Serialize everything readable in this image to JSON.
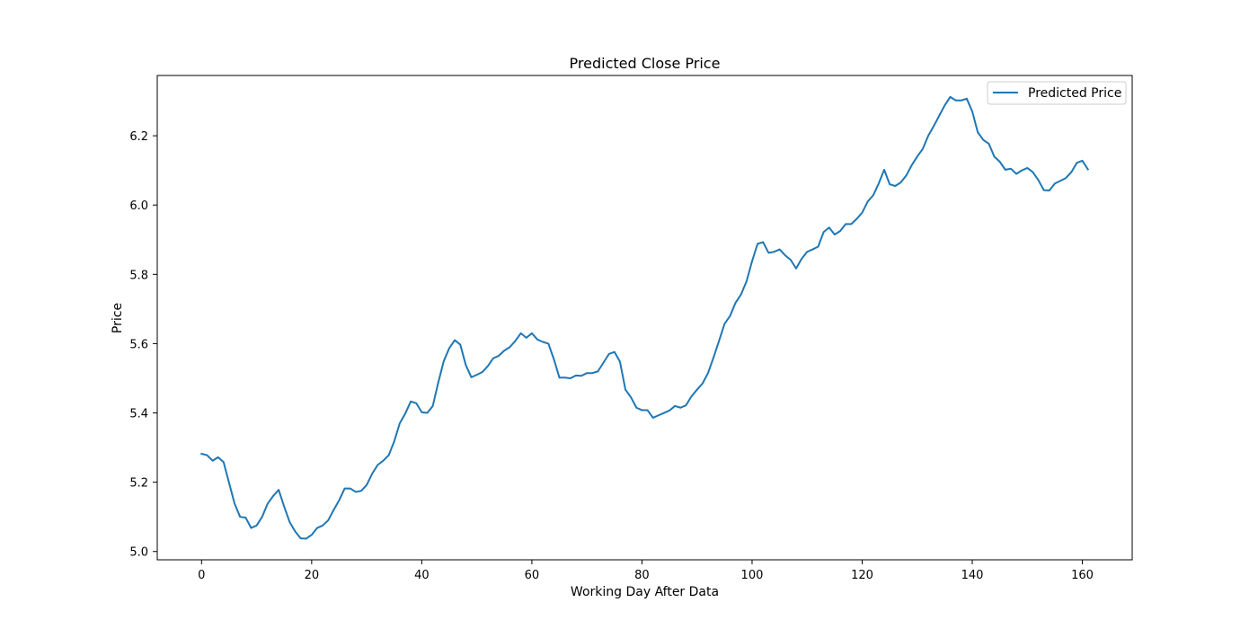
{
  "chart_data": {
    "type": "line",
    "title": "Predicted Close Price",
    "xlabel": "Working Day After Data",
    "ylabel": "Price",
    "xlim": [
      -8.05,
      169.05
    ],
    "ylim": [
      4.976,
      6.374
    ],
    "xticks": [
      0,
      20,
      40,
      60,
      80,
      100,
      120,
      140,
      160
    ],
    "yticks": [
      5.0,
      5.2,
      5.4,
      5.6,
      5.8,
      6.0,
      6.2
    ],
    "grid": false,
    "legend_position": "top-right",
    "series": [
      {
        "name": "Predicted Price",
        "color": "#1f77b4",
        "x_start": 0,
        "x_step": 1,
        "values": [
          5.282,
          5.278,
          5.262,
          5.272,
          5.258,
          5.198,
          5.138,
          5.1,
          5.098,
          5.068,
          5.075,
          5.1,
          5.138,
          5.16,
          5.178,
          5.13,
          5.085,
          5.058,
          5.038,
          5.037,
          5.048,
          5.068,
          5.075,
          5.09,
          5.12,
          5.148,
          5.182,
          5.182,
          5.172,
          5.175,
          5.192,
          5.225,
          5.25,
          5.262,
          5.278,
          5.318,
          5.37,
          5.398,
          5.433,
          5.428,
          5.402,
          5.4,
          5.42,
          5.488,
          5.55,
          5.587,
          5.61,
          5.597,
          5.538,
          5.503,
          5.51,
          5.518,
          5.535,
          5.558,
          5.565,
          5.58,
          5.59,
          5.608,
          5.63,
          5.617,
          5.63,
          5.612,
          5.605,
          5.6,
          5.555,
          5.502,
          5.502,
          5.5,
          5.508,
          5.507,
          5.515,
          5.515,
          5.52,
          5.545,
          5.57,
          5.576,
          5.548,
          5.467,
          5.445,
          5.415,
          5.408,
          5.408,
          5.386,
          5.393,
          5.4,
          5.407,
          5.42,
          5.415,
          5.422,
          5.448,
          5.467,
          5.485,
          5.515,
          5.56,
          5.608,
          5.657,
          5.68,
          5.718,
          5.742,
          5.78,
          5.838,
          5.888,
          5.893,
          5.862,
          5.865,
          5.872,
          5.855,
          5.842,
          5.817,
          5.845,
          5.865,
          5.872,
          5.88,
          5.922,
          5.935,
          5.915,
          5.925,
          5.945,
          5.945,
          5.96,
          5.978,
          6.01,
          6.028,
          6.062,
          6.102,
          6.06,
          6.055,
          6.065,
          6.085,
          6.115,
          6.14,
          6.162,
          6.2,
          6.228,
          6.258,
          6.288,
          6.312,
          6.302,
          6.302,
          6.307,
          6.27,
          6.21,
          6.188,
          6.177,
          6.14,
          6.125,
          6.102,
          6.105,
          6.09,
          6.1,
          6.107,
          6.095,
          6.072,
          6.043,
          6.042,
          6.062,
          6.07,
          6.078,
          6.095,
          6.122,
          6.128,
          6.103
        ]
      }
    ]
  }
}
